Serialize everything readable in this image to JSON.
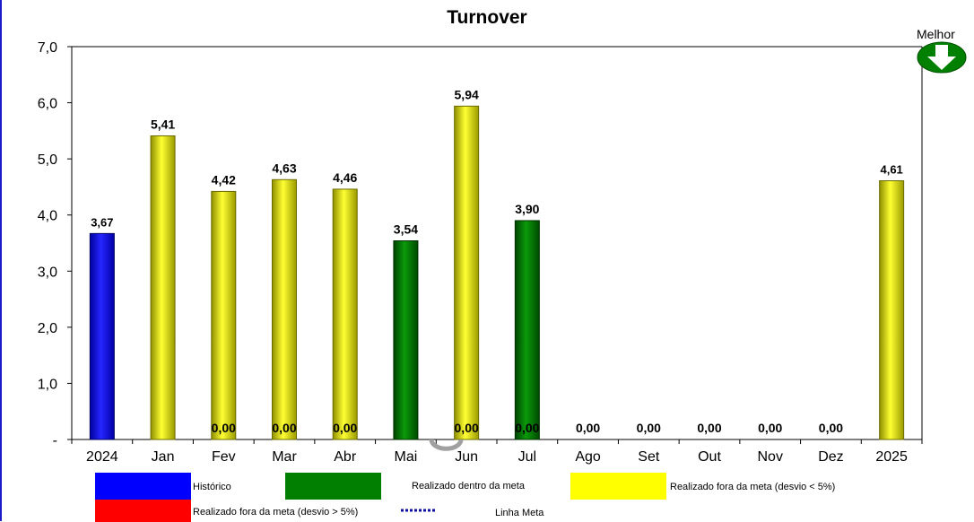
{
  "chart_data": {
    "type": "bar",
    "title": "Turnover",
    "categories": [
      "2024",
      "Jan",
      "Fev",
      "Mar",
      "Abr",
      "Mai",
      "Jun",
      "Jul",
      "Ago",
      "Set",
      "Out",
      "Nov",
      "Dez",
      "2025"
    ],
    "values": [
      3.67,
      5.41,
      4.42,
      4.63,
      4.46,
      3.54,
      5.94,
      3.9,
      0.0,
      0.0,
      0.0,
      0.0,
      0.0,
      4.61
    ],
    "value_labels": [
      "3,67",
      "5,41",
      "4,42",
      "4,63",
      "4,46",
      "3,54",
      "5,94",
      "3,90",
      "0,00",
      "0,00",
      "0,00",
      "0,00",
      "0,00",
      "4,61"
    ],
    "secondary_labels": [
      "",
      "",
      "0,00",
      "0,00",
      "0,00",
      "",
      "0,00",
      "0,00",
      "",
      "",
      "",
      "",
      "",
      ""
    ],
    "bar_status": [
      "historico",
      "fora_menor",
      "fora_menor",
      "fora_menor",
      "fora_menor",
      "dentro",
      "fora_menor",
      "dentro",
      "fora_menor",
      "fora_menor",
      "fora_menor",
      "fora_menor",
      "fora_menor",
      "fora_menor"
    ],
    "ylim": [
      0,
      7
    ],
    "yticks": [
      0,
      1,
      2,
      3,
      4,
      5,
      6,
      7
    ],
    "ytick_labels": [
      "-",
      "1,0",
      "2,0",
      "3,0",
      "4,0",
      "5,0",
      "6,0",
      "7,0"
    ],
    "xlabel": "",
    "ylabel": "",
    "grid": false,
    "legend_position": "bottom",
    "legend": [
      {
        "key": "historico",
        "label": "Histórico",
        "color": "#0000ff"
      },
      {
        "key": "dentro",
        "label": "Realizado dentro da meta",
        "color": "#007f00"
      },
      {
        "key": "fora_menor",
        "label": "Realizado fora da meta (desvio < 5%)",
        "color": "#ffff00"
      },
      {
        "key": "fora_maior",
        "label": "Realizado fora da meta (desvio > 5%)",
        "color": "#ff0000"
      },
      {
        "key": "meta",
        "label": "Linha Meta",
        "color": "#1010a0",
        "style": "dotted-line"
      }
    ],
    "indicator": {
      "label": "Melhor",
      "icon": "arrow-down-icon",
      "color": "#008000"
    }
  }
}
